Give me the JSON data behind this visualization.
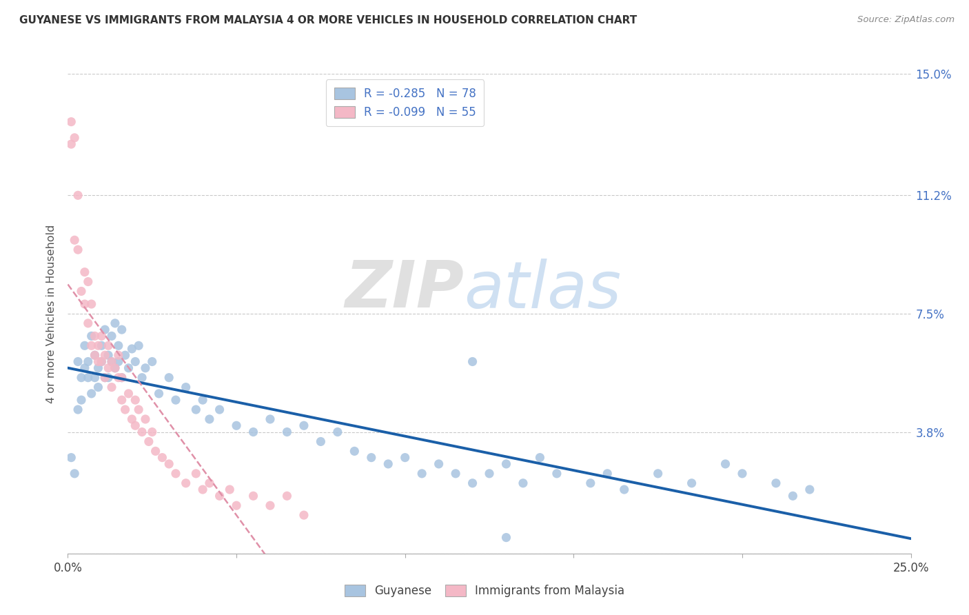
{
  "title": "GUYANESE VS IMMIGRANTS FROM MALAYSIA 4 OR MORE VEHICLES IN HOUSEHOLD CORRELATION CHART",
  "source": "Source: ZipAtlas.com",
  "ylabel": "4 or more Vehicles in Household",
  "legend_labels": [
    "Guyanese",
    "Immigrants from Malaysia"
  ],
  "r_guyanese": -0.285,
  "n_guyanese": 78,
  "r_malaysia": -0.099,
  "n_malaysia": 55,
  "xlim": [
    0.0,
    0.25
  ],
  "ylim": [
    0.0,
    0.15
  ],
  "ytick_positions": [
    0.0,
    0.038,
    0.075,
    0.112,
    0.15
  ],
  "ytick_labels": [
    "",
    "3.8%",
    "7.5%",
    "11.2%",
    "15.0%"
  ],
  "xtick_positions": [
    0.0,
    0.05,
    0.1,
    0.15,
    0.2,
    0.25
  ],
  "xtick_labels": [
    "0.0%",
    "",
    "",
    "",
    "",
    "25.0%"
  ],
  "color_guyanese": "#a8c4e0",
  "color_malaysia": "#f4b8c6",
  "line_color_guyanese": "#1a5fa8",
  "line_color_malaysia": "#e090a8",
  "background_color": "#ffffff",
  "watermark_zip": "ZIP",
  "watermark_atlas": "atlas",
  "guyanese_x": [
    0.001,
    0.002,
    0.003,
    0.003,
    0.004,
    0.004,
    0.005,
    0.005,
    0.006,
    0.006,
    0.007,
    0.007,
    0.008,
    0.008,
    0.009,
    0.009,
    0.01,
    0.01,
    0.011,
    0.011,
    0.012,
    0.012,
    0.013,
    0.013,
    0.014,
    0.014,
    0.015,
    0.015,
    0.016,
    0.016,
    0.017,
    0.018,
    0.019,
    0.02,
    0.021,
    0.022,
    0.023,
    0.025,
    0.027,
    0.03,
    0.032,
    0.035,
    0.038,
    0.04,
    0.042,
    0.045,
    0.05,
    0.055,
    0.06,
    0.065,
    0.07,
    0.075,
    0.08,
    0.085,
    0.09,
    0.095,
    0.1,
    0.105,
    0.11,
    0.115,
    0.12,
    0.125,
    0.13,
    0.135,
    0.14,
    0.145,
    0.155,
    0.16,
    0.165,
    0.175,
    0.185,
    0.195,
    0.2,
    0.21,
    0.215,
    0.22,
    0.13,
    0.12
  ],
  "guyanese_y": [
    0.03,
    0.025,
    0.06,
    0.045,
    0.055,
    0.048,
    0.065,
    0.058,
    0.06,
    0.055,
    0.068,
    0.05,
    0.062,
    0.055,
    0.058,
    0.052,
    0.065,
    0.06,
    0.07,
    0.055,
    0.062,
    0.055,
    0.068,
    0.06,
    0.072,
    0.058,
    0.065,
    0.06,
    0.07,
    0.055,
    0.062,
    0.058,
    0.064,
    0.06,
    0.065,
    0.055,
    0.058,
    0.06,
    0.05,
    0.055,
    0.048,
    0.052,
    0.045,
    0.048,
    0.042,
    0.045,
    0.04,
    0.038,
    0.042,
    0.038,
    0.04,
    0.035,
    0.038,
    0.032,
    0.03,
    0.028,
    0.03,
    0.025,
    0.028,
    0.025,
    0.022,
    0.025,
    0.028,
    0.022,
    0.03,
    0.025,
    0.022,
    0.025,
    0.02,
    0.025,
    0.022,
    0.028,
    0.025,
    0.022,
    0.018,
    0.02,
    0.005,
    0.06
  ],
  "malaysia_x": [
    0.001,
    0.001,
    0.002,
    0.002,
    0.003,
    0.003,
    0.004,
    0.005,
    0.005,
    0.006,
    0.006,
    0.007,
    0.007,
    0.008,
    0.008,
    0.009,
    0.009,
    0.01,
    0.01,
    0.011,
    0.011,
    0.012,
    0.012,
    0.013,
    0.013,
    0.014,
    0.015,
    0.015,
    0.016,
    0.016,
    0.017,
    0.018,
    0.019,
    0.02,
    0.02,
    0.021,
    0.022,
    0.023,
    0.024,
    0.025,
    0.026,
    0.028,
    0.03,
    0.032,
    0.035,
    0.038,
    0.04,
    0.042,
    0.045,
    0.048,
    0.05,
    0.055,
    0.06,
    0.065,
    0.07
  ],
  "malaysia_y": [
    0.135,
    0.128,
    0.13,
    0.098,
    0.112,
    0.095,
    0.082,
    0.088,
    0.078,
    0.085,
    0.072,
    0.065,
    0.078,
    0.062,
    0.068,
    0.06,
    0.065,
    0.068,
    0.06,
    0.062,
    0.055,
    0.065,
    0.058,
    0.06,
    0.052,
    0.058,
    0.055,
    0.062,
    0.048,
    0.055,
    0.045,
    0.05,
    0.042,
    0.048,
    0.04,
    0.045,
    0.038,
    0.042,
    0.035,
    0.038,
    0.032,
    0.03,
    0.028,
    0.025,
    0.022,
    0.025,
    0.02,
    0.022,
    0.018,
    0.02,
    0.015,
    0.018,
    0.015,
    0.018,
    0.012
  ]
}
